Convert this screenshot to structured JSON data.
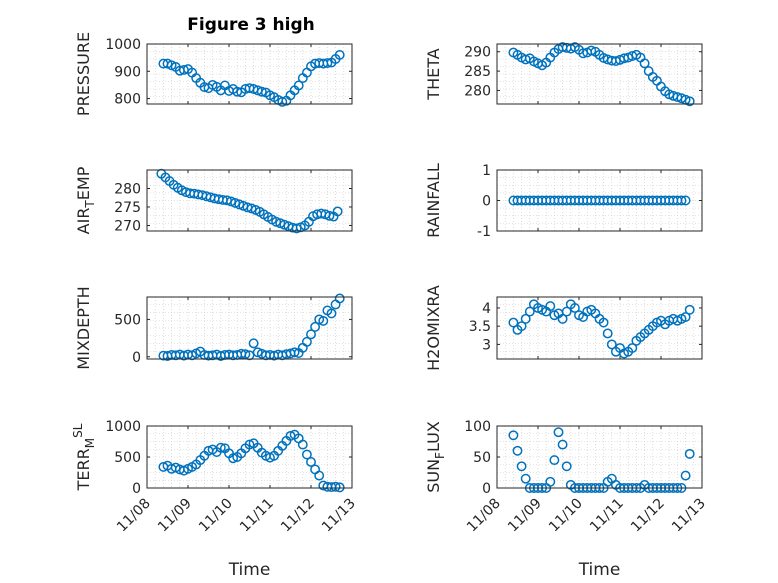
{
  "figure_title": "Figure 3 high",
  "colors": {
    "marker": "#0072BD",
    "axis": "#262626",
    "grid": "#c8c8c8"
  },
  "chart_data": [
    {
      "type": "scatter",
      "title": "Figure 3 high",
      "ylabel": "PRESSURE",
      "ylim": [
        780,
        1000
      ],
      "yticks": [
        800,
        900,
        1000
      ],
      "xlim": [
        0,
        5
      ],
      "grid": true,
      "x": [
        0.4,
        0.5,
        0.6,
        0.7,
        0.8,
        0.9,
        1.0,
        1.1,
        1.2,
        1.3,
        1.4,
        1.5,
        1.6,
        1.7,
        1.8,
        1.9,
        2.0,
        2.1,
        2.2,
        2.3,
        2.4,
        2.5,
        2.6,
        2.7,
        2.8,
        2.9,
        3.0,
        3.1,
        3.2,
        3.3,
        3.4,
        3.5,
        3.6,
        3.7,
        3.8,
        3.9,
        4.0,
        4.1,
        4.2,
        4.3,
        4.4,
        4.5,
        4.6,
        4.7
      ],
      "y": [
        928,
        928,
        922,
        916,
        902,
        905,
        908,
        895,
        875,
        858,
        842,
        838,
        850,
        843,
        830,
        848,
        828,
        835,
        825,
        823,
        835,
        838,
        835,
        830,
        825,
        822,
        812,
        805,
        795,
        788,
        792,
        812,
        830,
        848,
        875,
        895,
        918,
        928,
        930,
        928,
        930,
        932,
        945,
        960
      ]
    },
    {
      "type": "scatter",
      "ylabel": "THETA",
      "ylim": [
        276.5,
        292
      ],
      "yticks": [
        280,
        285,
        290
      ],
      "xlim": [
        0,
        5
      ],
      "grid": true,
      "x": [
        0.4,
        0.5,
        0.6,
        0.7,
        0.8,
        0.9,
        1.0,
        1.1,
        1.2,
        1.3,
        1.4,
        1.5,
        1.6,
        1.7,
        1.8,
        1.9,
        2.0,
        2.1,
        2.2,
        2.3,
        2.4,
        2.5,
        2.6,
        2.7,
        2.8,
        2.9,
        3.0,
        3.1,
        3.2,
        3.3,
        3.4,
        3.5,
        3.6,
        3.7,
        3.8,
        3.9,
        4.0,
        4.1,
        4.2,
        4.3,
        4.4,
        4.5,
        4.6,
        4.7
      ],
      "y": [
        289.8,
        289.2,
        288.5,
        288.0,
        288.3,
        287.5,
        287.0,
        286.5,
        287.2,
        288.5,
        289.8,
        290.7,
        291.2,
        291.0,
        290.8,
        291.2,
        290.5,
        289.6,
        289.8,
        290.3,
        290.0,
        289.2,
        288.4,
        288.0,
        287.7,
        287.6,
        287.9,
        288.3,
        288.5,
        288.9,
        289.2,
        288.5,
        287.0,
        285.0,
        283.5,
        282.5,
        281.0,
        279.8,
        279.0,
        278.6,
        278.3,
        278.0,
        277.6,
        277.2
      ]
    },
    {
      "type": "scatter",
      "ylabel": "AIR_TEMP",
      "ylim": [
        268.5,
        285
      ],
      "yticks": [
        270,
        275,
        280
      ],
      "xlim": [
        0,
        5
      ],
      "grid": true,
      "x": [
        0.35,
        0.45,
        0.55,
        0.65,
        0.75,
        0.85,
        0.95,
        1.05,
        1.15,
        1.25,
        1.35,
        1.45,
        1.55,
        1.65,
        1.75,
        1.85,
        1.95,
        2.05,
        2.15,
        2.25,
        2.35,
        2.45,
        2.55,
        2.65,
        2.75,
        2.85,
        2.95,
        3.05,
        3.15,
        3.25,
        3.35,
        3.45,
        3.55,
        3.65,
        3.75,
        3.85,
        3.95,
        4.05,
        4.15,
        4.25,
        4.35,
        4.45,
        4.55,
        4.65
      ],
      "y": [
        284.0,
        283.0,
        282.0,
        281.0,
        280.2,
        279.5,
        279.0,
        278.7,
        278.6,
        278.4,
        278.2,
        277.9,
        277.6,
        277.3,
        277.1,
        276.9,
        276.8,
        276.5,
        276.1,
        275.7,
        275.3,
        274.9,
        274.6,
        274.2,
        273.7,
        273.0,
        272.3,
        271.6,
        271.0,
        270.6,
        270.2,
        269.8,
        269.4,
        269.2,
        269.5,
        270.0,
        271.0,
        272.5,
        273.0,
        273.2,
        273.0,
        272.6,
        272.4,
        273.8
      ]
    },
    {
      "type": "scatter",
      "ylabel": "RAINFALL",
      "ylim": [
        -1,
        1
      ],
      "yticks": [
        -1,
        0,
        1
      ],
      "xlim": [
        0,
        5
      ],
      "grid": true,
      "x": [
        0.4,
        0.5,
        0.6,
        0.7,
        0.8,
        0.9,
        1.0,
        1.1,
        1.2,
        1.3,
        1.4,
        1.5,
        1.6,
        1.7,
        1.8,
        1.9,
        2.0,
        2.1,
        2.2,
        2.3,
        2.4,
        2.5,
        2.6,
        2.7,
        2.8,
        2.9,
        3.0,
        3.1,
        3.2,
        3.3,
        3.4,
        3.5,
        3.6,
        3.7,
        3.8,
        3.9,
        4.0,
        4.1,
        4.2,
        4.3,
        4.4,
        4.5,
        4.6
      ],
      "y": [
        0,
        0,
        0,
        0,
        0,
        0,
        0,
        0,
        0,
        0,
        0,
        0,
        0,
        0,
        0,
        0,
        0,
        0,
        0,
        0,
        0,
        0,
        0,
        0,
        0,
        0,
        0,
        0,
        0,
        0,
        0,
        0,
        0,
        0,
        0,
        0,
        0,
        0,
        0,
        0,
        0,
        0,
        0
      ]
    },
    {
      "type": "scatter",
      "ylabel": "MIXDEPTH",
      "ylim": [
        -30,
        800
      ],
      "yticks": [
        0,
        500
      ],
      "xlim": [
        0,
        5
      ],
      "grid": true,
      "x": [
        0.4,
        0.5,
        0.6,
        0.7,
        0.8,
        0.9,
        1.0,
        1.1,
        1.2,
        1.3,
        1.4,
        1.5,
        1.6,
        1.7,
        1.8,
        1.9,
        2.0,
        2.1,
        2.2,
        2.3,
        2.4,
        2.5,
        2.6,
        2.7,
        2.8,
        2.9,
        3.0,
        3.1,
        3.2,
        3.3,
        3.4,
        3.5,
        3.6,
        3.7,
        3.8,
        3.9,
        4.0,
        4.1,
        4.2,
        4.3,
        4.4,
        4.5,
        4.6,
        4.7
      ],
      "y": [
        15,
        10,
        25,
        20,
        30,
        15,
        30,
        20,
        45,
        70,
        25,
        15,
        20,
        30,
        10,
        25,
        30,
        20,
        25,
        40,
        35,
        20,
        180,
        60,
        40,
        20,
        25,
        15,
        30,
        20,
        35,
        45,
        60,
        50,
        120,
        200,
        300,
        400,
        500,
        480,
        620,
        580,
        700,
        780
      ]
    },
    {
      "type": "scatter",
      "ylabel": "H2OMIXRA",
      "ylim": [
        2.6,
        4.3
      ],
      "yticks": [
        3,
        3.5,
        4
      ],
      "xlim": [
        0,
        5
      ],
      "grid": true,
      "x": [
        0.4,
        0.5,
        0.6,
        0.7,
        0.8,
        0.9,
        1.0,
        1.1,
        1.2,
        1.3,
        1.4,
        1.5,
        1.6,
        1.7,
        1.8,
        1.9,
        2.0,
        2.1,
        2.2,
        2.3,
        2.4,
        2.5,
        2.6,
        2.7,
        2.8,
        2.9,
        3.0,
        3.1,
        3.2,
        3.3,
        3.4,
        3.5,
        3.6,
        3.7,
        3.8,
        3.9,
        4.0,
        4.1,
        4.2,
        4.3,
        4.4,
        4.5,
        4.6,
        4.7
      ],
      "y": [
        3.6,
        3.4,
        3.5,
        3.7,
        3.9,
        4.1,
        4.0,
        3.95,
        3.9,
        4.05,
        3.8,
        3.85,
        3.7,
        3.9,
        4.1,
        4.0,
        3.8,
        3.75,
        3.9,
        3.95,
        3.85,
        3.7,
        3.6,
        3.3,
        3.0,
        2.8,
        2.9,
        2.75,
        2.8,
        2.9,
        3.1,
        3.2,
        3.3,
        3.4,
        3.5,
        3.6,
        3.65,
        3.55,
        3.65,
        3.7,
        3.65,
        3.7,
        3.75,
        3.95
      ]
    },
    {
      "type": "scatter",
      "ylabel": "TERR_MSL",
      "ylim": [
        0,
        1000
      ],
      "yticks": [
        0,
        500,
        1000
      ],
      "xlim": [
        0,
        5
      ],
      "grid": true,
      "x": [
        0.4,
        0.5,
        0.6,
        0.7,
        0.8,
        0.9,
        1.0,
        1.1,
        1.2,
        1.3,
        1.4,
        1.5,
        1.6,
        1.7,
        1.8,
        1.9,
        2.0,
        2.1,
        2.2,
        2.3,
        2.4,
        2.5,
        2.6,
        2.7,
        2.8,
        2.9,
        3.0,
        3.1,
        3.2,
        3.3,
        3.4,
        3.5,
        3.6,
        3.7,
        3.8,
        3.9,
        4.0,
        4.1,
        4.2,
        4.3,
        4.4,
        4.5,
        4.6,
        4.7
      ],
      "y": [
        340,
        360,
        310,
        330,
        300,
        280,
        310,
        340,
        380,
        450,
        520,
        600,
        620,
        580,
        650,
        640,
        560,
        480,
        500,
        560,
        640,
        700,
        720,
        650,
        570,
        520,
        490,
        520,
        600,
        680,
        760,
        840,
        860,
        800,
        700,
        540,
        420,
        300,
        200,
        40,
        20,
        15,
        20,
        10
      ]
    },
    {
      "type": "scatter",
      "ylabel": "SUN_FLUX",
      "ylim": [
        0,
        100
      ],
      "yticks": [
        0,
        50,
        100
      ],
      "xlim": [
        0,
        5
      ],
      "grid": true,
      "xlabel": "Time",
      "x": [
        0.4,
        0.5,
        0.6,
        0.7,
        0.8,
        0.9,
        1.0,
        1.1,
        1.2,
        1.3,
        1.4,
        1.5,
        1.6,
        1.7,
        1.8,
        1.9,
        2.0,
        2.1,
        2.2,
        2.3,
        2.4,
        2.5,
        2.6,
        2.7,
        2.8,
        2.9,
        3.0,
        3.1,
        3.2,
        3.3,
        3.4,
        3.5,
        3.6,
        3.7,
        3.8,
        3.9,
        4.0,
        4.1,
        4.2,
        4.3,
        4.4,
        4.5,
        4.6,
        4.7
      ],
      "y": [
        85,
        60,
        35,
        15,
        0,
        0,
        0,
        0,
        0,
        10,
        45,
        90,
        70,
        35,
        5,
        0,
        0,
        0,
        0,
        0,
        0,
        0,
        0,
        10,
        15,
        5,
        0,
        0,
        0,
        0,
        0,
        0,
        5,
        0,
        0,
        0,
        0,
        0,
        0,
        0,
        0,
        0,
        20,
        55
      ]
    }
  ],
  "x_axis": {
    "xlabel": "Time",
    "tick_labels": [
      "11/08",
      "11/09",
      "11/10",
      "11/11",
      "11/12",
      "11/13"
    ]
  },
  "ylabels": {
    "p0": {
      "base": "PRESSURE",
      "sub": "",
      "tail": "",
      "sup": "",
      "tail2": ""
    },
    "p1": {
      "base": "THETA",
      "sub": "",
      "tail": "",
      "sup": "",
      "tail2": ""
    },
    "p2": {
      "base": "AIR",
      "sub": "T",
      "tail": "EMP",
      "sup": "",
      "tail2": ""
    },
    "p3": {
      "base": "RAINFALL",
      "sub": "",
      "tail": "",
      "sup": "",
      "tail2": ""
    },
    "p4": {
      "base": "MIXDEPTH",
      "sub": "",
      "tail": "",
      "sup": "",
      "tail2": ""
    },
    "p5": {
      "base": "H2OMIXRA",
      "sub": "",
      "tail": "",
      "sup": "",
      "tail2": ""
    },
    "p6": {
      "base": "TERR",
      "sub": "M",
      "tail": "",
      "sup": "SL",
      "tail2": ""
    },
    "p7": {
      "base": "SUN",
      "sub": "F",
      "tail": "LUX",
      "sup": "",
      "tail2": ""
    }
  }
}
